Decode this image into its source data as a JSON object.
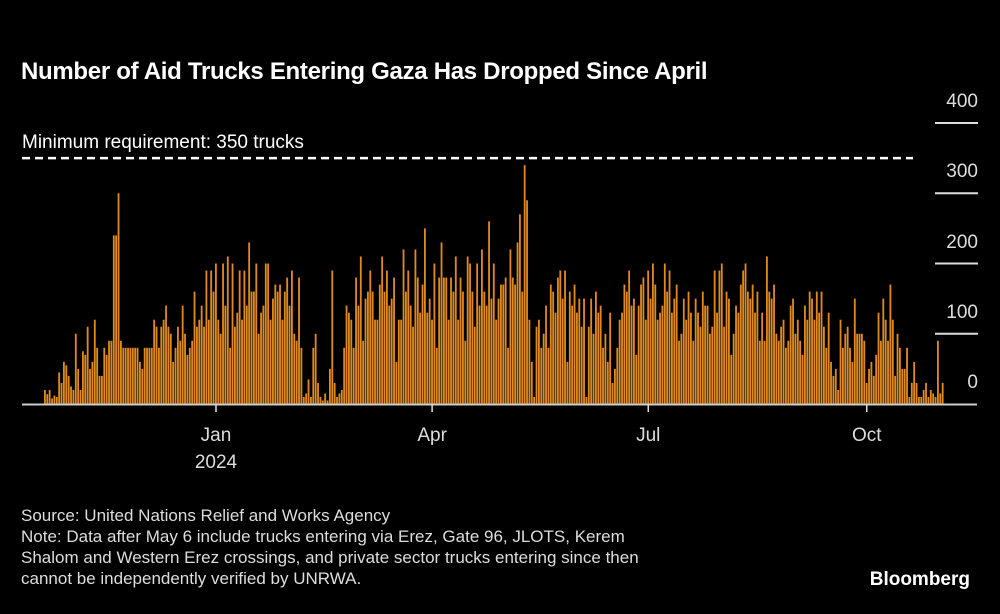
{
  "title": "Number of Aid Trucks Entering Gaza Has Dropped Since April",
  "footer": {
    "source": "Source: United Nations Relief and Works Agency",
    "note_lines": [
      "Note: Data after May 6 include trucks entering via Erez, Gate 96, JLOTS, Kerem",
      "Shalom and Western Erez crossings, and private sector trucks entering since then",
      "cannot be independently verified by UNRWA."
    ]
  },
  "logo": "Bloomberg",
  "colors": {
    "bar": "#e08a1e",
    "background": "#000000",
    "text": "#ffffff",
    "axis": "#cccccc"
  },
  "chart_data": {
    "type": "bar",
    "title": "Number of Aid Trucks Entering Gaza Has Dropped Since April",
    "xlabel": "",
    "ylabel": "",
    "ylim": [
      0,
      400
    ],
    "yticks": [
      0,
      100,
      200,
      300,
      400
    ],
    "ytick_labels": [
      "0",
      "100",
      "200",
      "300",
      "400"
    ],
    "xticks": [
      {
        "label": "Jan",
        "sublabel": "2024",
        "day_index": 72
      },
      {
        "label": "Apr",
        "sublabel": "",
        "day_index": 163
      },
      {
        "label": "Jul",
        "sublabel": "",
        "day_index": 254
      },
      {
        "label": "Oct",
        "sublabel": "",
        "day_index": 346
      }
    ],
    "start_date": "2023-10-21",
    "frequency": "daily",
    "reference_line": {
      "value": 350,
      "label": "Minimum requirement: 350 trucks",
      "style": "dashed"
    },
    "grid": false,
    "legend": "none",
    "series": [
      {
        "name": "Aid trucks",
        "values": [
          20,
          14,
          20,
          8,
          12,
          10,
          45,
          30,
          60,
          55,
          40,
          25,
          20,
          100,
          50,
          20,
          75,
          70,
          110,
          50,
          60,
          120,
          80,
          40,
          40,
          80,
          70,
          90,
          90,
          240,
          240,
          300,
          90,
          80,
          80,
          80,
          80,
          80,
          80,
          80,
          60,
          50,
          80,
          80,
          80,
          80,
          120,
          110,
          80,
          110,
          120,
          140,
          110,
          100,
          60,
          80,
          110,
          90,
          140,
          100,
          70,
          80,
          90,
          160,
          110,
          120,
          140,
          110,
          190,
          120,
          190,
          160,
          200,
          120,
          100,
          200,
          140,
          210,
          80,
          200,
          110,
          130,
          190,
          120,
          190,
          140,
          230,
          160,
          160,
          200,
          100,
          130,
          140,
          200,
          200,
          120,
          150,
          170,
          160,
          170,
          120,
          160,
          180,
          140,
          190,
          100,
          90,
          180,
          80,
          10,
          15,
          35,
          10,
          80,
          100,
          30,
          10,
          5,
          15,
          5,
          50,
          190,
          30,
          10,
          15,
          20,
          80,
          140,
          130,
          120,
          80,
          180,
          140,
          210,
          90,
          150,
          160,
          190,
          160,
          120,
          120,
          170,
          210,
          160,
          190,
          140,
          150,
          180,
          60,
          120,
          120,
          220,
          160,
          190,
          140,
          110,
          220,
          180,
          130,
          170,
          250,
          130,
          150,
          120,
          200,
          80,
          180,
          230,
          180,
          180,
          120,
          180,
          160,
          210,
          120,
          180,
          160,
          90,
          210,
          200,
          160,
          110,
          200,
          140,
          220,
          160,
          140,
          260,
          150,
          200,
          120,
          150,
          170,
          170,
          180,
          80,
          220,
          180,
          170,
          230,
          270,
          160,
          340,
          290,
          120,
          60,
          10,
          110,
          120,
          80,
          100,
          140,
          80,
          170,
          160,
          130,
          180,
          190,
          150,
          190,
          60,
          160,
          140,
          170,
          130,
          150,
          110,
          150,
          10,
          110,
          150,
          100,
          160,
          130,
          140,
          80,
          100,
          60,
          130,
          30,
          50,
          80,
          120,
          130,
          170,
          160,
          190,
          140,
          150,
          70,
          140,
          170,
          180,
          120,
          190,
          150,
          200,
          170,
          120,
          130,
          140,
          200,
          160,
          190,
          130,
          150,
          170,
          90,
          100,
          150,
          120,
          160,
          130,
          90,
          150,
          130,
          110,
          160,
          140,
          140,
          100,
          110,
          190,
          130,
          190,
          200,
          110,
          160,
          150,
          70,
          100,
          140,
          130,
          170,
          190,
          200,
          160,
          150,
          170,
          130,
          160,
          90,
          130,
          90,
          210,
          160,
          150,
          170,
          100,
          90,
          110,
          120,
          80,
          90,
          140,
          150,
          100,
          120,
          90,
          70,
          140,
          120,
          160,
          150,
          120,
          160,
          130,
          160,
          110,
          80,
          130,
          60,
          40,
          50,
          20,
          120,
          80,
          100,
          110,
          80,
          60,
          150,
          100,
          100,
          100,
          90,
          30,
          50,
          60,
          40,
          70,
          130,
          90,
          150,
          120,
          90,
          170,
          120,
          40,
          100,
          80,
          50,
          50,
          80,
          10,
          30,
          60,
          30,
          10,
          10,
          20,
          30,
          10,
          20,
          15,
          10,
          90,
          15,
          30
        ]
      }
    ]
  }
}
